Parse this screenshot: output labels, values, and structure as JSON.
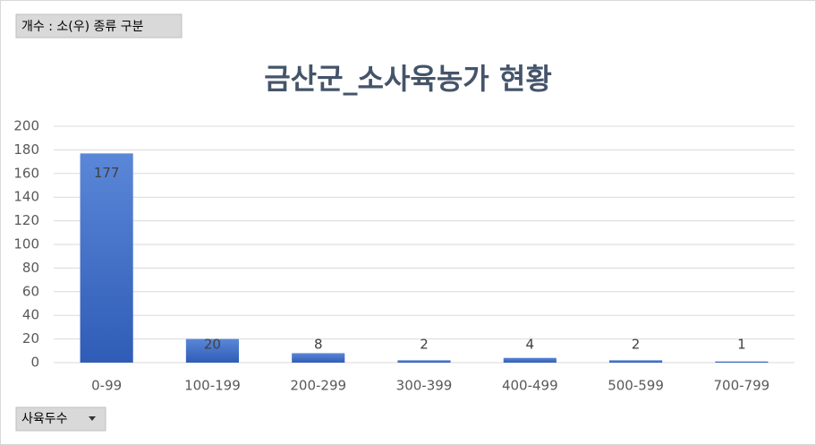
{
  "field_buttons": {
    "filter": "개수 : 소(우) 종류 구분",
    "axis": "사육두수"
  },
  "chart_data": {
    "type": "bar",
    "title": "금산군_소사육농가 현황",
    "categories": [
      "0-99",
      "100-199",
      "200-299",
      "300-399",
      "400-499",
      "500-599",
      "700-799"
    ],
    "values": [
      177,
      20,
      8,
      2,
      4,
      2,
      1
    ],
    "color": "#4472c4",
    "ylim": [
      0,
      200
    ],
    "yticks": [
      0,
      20,
      40,
      60,
      80,
      100,
      120,
      140,
      160,
      180,
      200
    ],
    "grid": true,
    "data_labels": true
  }
}
